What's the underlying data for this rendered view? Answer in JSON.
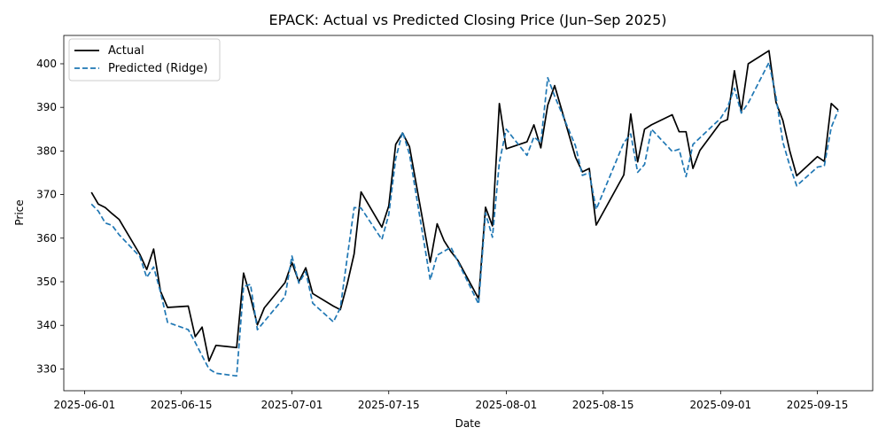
{
  "chart_data": {
    "type": "line",
    "title": "EPACK: Actual vs Predicted Closing Price (Jun–Sep 2025)",
    "xlabel": "Date",
    "ylabel": "Price",
    "xlim": [
      "2025-05-29",
      "2025-09-23"
    ],
    "ylim": [
      325,
      406.5
    ],
    "x_ticks": [
      "2025-06-01",
      "2025-06-15",
      "2025-07-01",
      "2025-07-15",
      "2025-08-01",
      "2025-08-15",
      "2025-09-01",
      "2025-09-15"
    ],
    "y_ticks": [
      330,
      340,
      350,
      360,
      370,
      380,
      390,
      400
    ],
    "grid": false,
    "legend_position": "upper-left",
    "colors": {
      "actual": "#000000",
      "predicted": "#1f77b4"
    },
    "series": [
      {
        "name": "Actual",
        "style": "solid",
        "x": [
          "2025-06-02",
          "2025-06-03",
          "2025-06-04",
          "2025-06-05",
          "2025-06-06",
          "2025-06-09",
          "2025-06-10",
          "2025-06-11",
          "2025-06-12",
          "2025-06-13",
          "2025-06-16",
          "2025-06-17",
          "2025-06-18",
          "2025-06-19",
          "2025-06-20",
          "2025-06-23",
          "2025-06-24",
          "2025-06-25",
          "2025-06-26",
          "2025-06-27",
          "2025-06-30",
          "2025-07-01",
          "2025-07-02",
          "2025-07-03",
          "2025-07-04",
          "2025-07-07",
          "2025-07-08",
          "2025-07-09",
          "2025-07-10",
          "2025-07-11",
          "2025-07-14",
          "2025-07-15",
          "2025-07-16",
          "2025-07-17",
          "2025-07-18",
          "2025-07-21",
          "2025-07-22",
          "2025-07-23",
          "2025-07-24",
          "2025-07-25",
          "2025-07-28",
          "2025-07-29",
          "2025-07-30",
          "2025-07-31",
          "2025-08-01",
          "2025-08-04",
          "2025-08-05",
          "2025-08-06",
          "2025-08-07",
          "2025-08-08",
          "2025-08-11",
          "2025-08-12",
          "2025-08-13",
          "2025-08-14",
          "2025-08-18",
          "2025-08-19",
          "2025-08-20",
          "2025-08-21",
          "2025-08-22",
          "2025-08-25",
          "2025-08-26",
          "2025-08-27",
          "2025-08-28",
          "2025-08-29",
          "2025-09-01",
          "2025-09-02",
          "2025-09-03",
          "2025-09-04",
          "2025-09-05",
          "2025-09-08",
          "2025-09-09",
          "2025-09-10",
          "2025-09-11",
          "2025-09-12",
          "2025-09-15",
          "2025-09-16",
          "2025-09-17",
          "2025-09-18"
        ],
        "values": [
          370.5,
          367.8,
          367.0,
          365.6,
          364.3,
          356.3,
          352.8,
          357.5,
          347.8,
          344.1,
          344.4,
          337.4,
          339.6,
          331.8,
          335.4,
          334.9,
          352.0,
          346.5,
          340.1,
          344.0,
          349.8,
          354.4,
          350.0,
          353.2,
          347.3,
          344.4,
          343.6,
          349.5,
          356.4,
          370.6,
          362.5,
          367.4,
          381.5,
          384.1,
          381.0,
          354.5,
          363.3,
          359.4,
          356.9,
          354.9,
          346.1,
          367.1,
          362.8,
          390.9,
          380.5,
          382.1,
          386.0,
          380.7,
          390.5,
          395.0,
          378.6,
          375.2,
          376.0,
          363.0,
          374.5,
          388.5,
          377.5,
          385.0,
          386.0,
          388.3,
          384.4,
          384.4,
          376.0,
          380.1,
          386.5,
          387.2,
          398.4,
          389.1,
          400.0,
          403.0,
          391.2,
          387.0,
          380.0,
          374.3,
          378.7,
          377.6,
          390.9,
          389.4
        ]
      },
      {
        "name": "Predicted (Ridge)",
        "style": "dashed",
        "x": [
          "2025-06-02",
          "2025-06-03",
          "2025-06-04",
          "2025-06-05",
          "2025-06-06",
          "2025-06-09",
          "2025-06-10",
          "2025-06-11",
          "2025-06-12",
          "2025-06-13",
          "2025-06-16",
          "2025-06-17",
          "2025-06-18",
          "2025-06-19",
          "2025-06-20",
          "2025-06-23",
          "2025-06-24",
          "2025-06-25",
          "2025-06-26",
          "2025-06-27",
          "2025-06-30",
          "2025-07-01",
          "2025-07-02",
          "2025-07-03",
          "2025-07-04",
          "2025-07-07",
          "2025-07-08",
          "2025-07-09",
          "2025-07-10",
          "2025-07-11",
          "2025-07-14",
          "2025-07-15",
          "2025-07-16",
          "2025-07-17",
          "2025-07-18",
          "2025-07-21",
          "2025-07-22",
          "2025-07-23",
          "2025-07-24",
          "2025-07-25",
          "2025-07-28",
          "2025-07-29",
          "2025-07-30",
          "2025-07-31",
          "2025-08-01",
          "2025-08-04",
          "2025-08-05",
          "2025-08-06",
          "2025-08-07",
          "2025-08-08",
          "2025-08-11",
          "2025-08-12",
          "2025-08-13",
          "2025-08-14",
          "2025-08-18",
          "2025-08-19",
          "2025-08-20",
          "2025-08-21",
          "2025-08-22",
          "2025-08-25",
          "2025-08-26",
          "2025-08-27",
          "2025-08-28",
          "2025-08-29",
          "2025-09-01",
          "2025-09-02",
          "2025-09-03",
          "2025-09-04",
          "2025-09-05",
          "2025-09-08",
          "2025-09-09",
          "2025-09-10",
          "2025-09-11",
          "2025-09-12",
          "2025-09-15",
          "2025-09-16",
          "2025-09-17",
          "2025-09-18"
        ],
        "values": [
          367.8,
          366.2,
          363.5,
          362.9,
          360.8,
          355.8,
          351.0,
          353.4,
          347.6,
          340.7,
          339.0,
          336.1,
          333.0,
          330.0,
          329.0,
          328.4,
          348.9,
          349.4,
          339.0,
          340.9,
          346.6,
          355.9,
          349.7,
          352.3,
          345.1,
          340.8,
          344.0,
          355.5,
          367.0,
          366.9,
          359.7,
          365.4,
          378.2,
          384.4,
          379.2,
          350.4,
          356.1,
          357.0,
          357.9,
          354.6,
          344.9,
          365.8,
          360.2,
          377.4,
          385.0,
          379.0,
          383.2,
          381.9,
          396.8,
          392.6,
          381.2,
          374.4,
          375.0,
          366.6,
          381.9,
          383.9,
          375.1,
          376.9,
          385.0,
          379.9,
          380.4,
          374.1,
          381.5,
          383.0,
          387.5,
          390.0,
          394.4,
          388.7,
          391.0,
          400.3,
          392.5,
          382.0,
          376.6,
          372.0,
          376.3,
          376.6,
          385.4,
          389.3
        ]
      }
    ]
  }
}
